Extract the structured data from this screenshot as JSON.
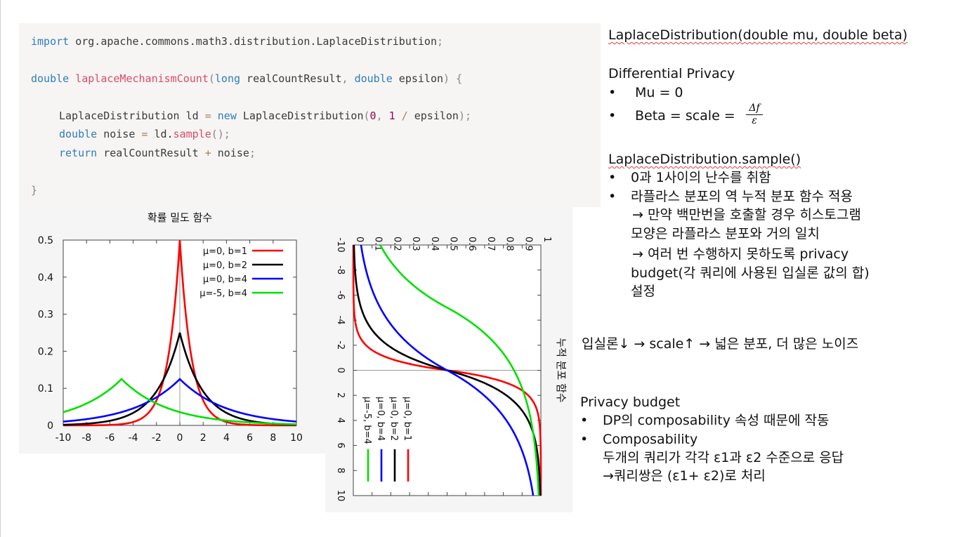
{
  "code": {
    "line1": {
      "kw": "import",
      "rest": " org.apache.commons.math3.distribution.LaplaceDistribution",
      "end": ";"
    },
    "line2": {
      "t1": "double",
      "fn": "laplaceMechanismCount",
      "p1": "(",
      "t2": "long",
      "a1": " realCountResult",
      "comma": ",",
      "t3": " double",
      "a2": " epsilon",
      "p2": ")",
      "brace": " {"
    },
    "line3": {
      "a": "LaplaceDistribution ld ",
      "eq": "=",
      "new": " new",
      "b": " LaplaceDistribution",
      "p1": "(",
      "n0": "0",
      "c": ", ",
      "n1": "1",
      "div": " / ",
      "d": "epsilon",
      "p2": ");"
    },
    "line4": {
      "t": "double",
      "a": " noise ",
      "eq": "=",
      "b": " ld.",
      "fn": "sample",
      "p": "();"
    },
    "line5": {
      "kw": "return",
      "a": " realCountResult ",
      "op": "+",
      "b": " noise",
      "p": ";"
    },
    "line6": {
      "brace": "}"
    }
  },
  "notes": {
    "constructor": "LaplaceDistribution(double mu, double beta)",
    "dp_title": "Differential Privacy",
    "bullet": "•",
    "mu": "Mu = 0",
    "beta": "Beta = scale =",
    "frac_num": "Δf",
    "frac_den": "ε",
    "sample_title": "LaplaceDistribution.sample()",
    "s1": "0과 1사이의 난수를 취함",
    "s2": "라플라스 분포의 역 누적 분포 함수 적용",
    "s3": "→ 만약 백만번을 호출할 경우 히스토그램",
    "s4": "모양은 라플라스 분포와 거의 일치",
    "s5": "→ 여러 번 수행하지 못하도록 privacy",
    "s6": "budget(각 쿼리에 사용된 입실론 값의 합)",
    "s7": "설정",
    "relation": "입실론↓  →  scale↑ → 넓은 분포, 더 많은 노이즈",
    "pb_title": "Privacy budget",
    "pb1": "DP의 composability 속성 때문에 작동",
    "pb2": "Composability",
    "pb3": "두개의 쿼리가 각각 ε1과 ε2 수준으로 응답",
    "pb4": "→쿼리쌍은 (ε1+ ε2)로 처리"
  },
  "chart_data": [
    {
      "type": "line",
      "title": "확률 밀도 함수",
      "xlabel": "",
      "ylabel": "",
      "xlim": [
        -10,
        10
      ],
      "ylim": [
        0,
        0.5
      ],
      "x_ticks": [
        "-10",
        "-8",
        "-6",
        "-4",
        "-2",
        "0",
        "2",
        "4",
        "6",
        "8",
        "10"
      ],
      "y_ticks": [
        "0",
        "0.1",
        "0.2",
        "0.3",
        "0.4",
        "0.5"
      ],
      "legend_position": "top-right",
      "series": [
        {
          "name": "μ=0, b=1",
          "mu": 0,
          "b": 1,
          "color": "#ff0000",
          "x": [
            -10,
            -4,
            -2,
            -1,
            0,
            1,
            2,
            4,
            10
          ],
          "y": [
            0.0,
            0.0092,
            0.0677,
            0.1839,
            0.5,
            0.1839,
            0.0677,
            0.0092,
            0.0
          ]
        },
        {
          "name": "μ=0, b=2",
          "mu": 0,
          "b": 2,
          "color": "#000000",
          "x": [
            -10,
            -4,
            -2,
            0,
            2,
            4,
            10
          ],
          "y": [
            0.0017,
            0.0338,
            0.092,
            0.25,
            0.092,
            0.0338,
            0.0017
          ]
        },
        {
          "name": "μ=0, b=4",
          "mu": 0,
          "b": 4,
          "color": "#0000ff",
          "x": [
            -10,
            -4,
            0,
            4,
            10
          ],
          "y": [
            0.0103,
            0.046,
            0.125,
            0.046,
            0.0103
          ]
        },
        {
          "name": "μ=-5, b=4",
          "mu": -5,
          "b": 4,
          "color": "#00e000",
          "x": [
            -10,
            -5,
            0,
            5,
            10
          ],
          "y": [
            0.0358,
            0.125,
            0.0358,
            0.0103,
            0.0029
          ]
        }
      ]
    },
    {
      "type": "line",
      "title": "누적 분포 함수",
      "xlabel": "",
      "ylabel": "",
      "xlim": [
        -10,
        10
      ],
      "ylim": [
        0,
        1
      ],
      "x_ticks": [
        "-10",
        "-8",
        "-6",
        "-4",
        "-2",
        "0",
        "2",
        "4",
        "6",
        "8",
        "10"
      ],
      "y_ticks": [
        "0",
        "0.1",
        "0.2",
        "0.3",
        "0.4",
        "0.5",
        "0.6",
        "0.7",
        "0.8",
        "0.9",
        "1"
      ],
      "orientation": "rotated 90 degrees clockwise",
      "legend_position": "bottom-left",
      "series": [
        {
          "name": "μ=0, b=1",
          "mu": 0,
          "b": 1,
          "color": "#ff0000",
          "x": [
            -10,
            -2,
            0,
            2,
            10
          ],
          "y": [
            0.0,
            0.0677,
            0.5,
            0.9323,
            1.0
          ]
        },
        {
          "name": "μ=0, b=2",
          "mu": 0,
          "b": 2,
          "color": "#000000",
          "x": [
            -10,
            -2,
            0,
            2,
            10
          ],
          "y": [
            0.0034,
            0.1839,
            0.5,
            0.8161,
            0.9966
          ]
        },
        {
          "name": "μ=0, b=4",
          "mu": 0,
          "b": 4,
          "color": "#0000ff",
          "x": [
            -10,
            -4,
            0,
            4,
            10
          ],
          "y": [
            0.041,
            0.1839,
            0.5,
            0.8161,
            0.959
          ]
        },
        {
          "name": "μ=-5, b=4",
          "mu": -5,
          "b": 4,
          "color": "#00e000",
          "x": [
            -10,
            -5,
            0,
            5,
            10
          ],
          "y": [
            0.1433,
            0.5,
            0.8567,
            0.959,
            0.9883
          ]
        }
      ]
    }
  ]
}
